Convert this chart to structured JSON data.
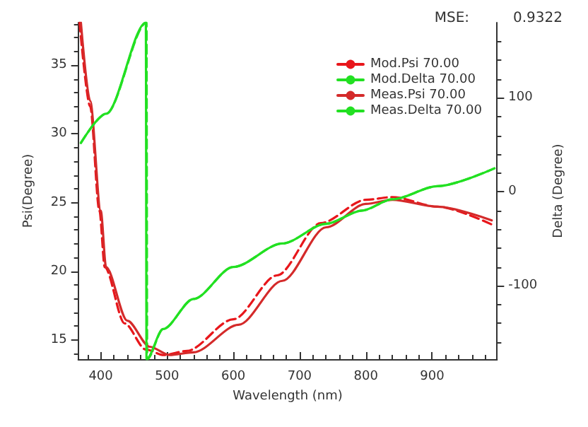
{
  "chart_data": {
    "type": "line",
    "xlabel": "Wavelength (nm)",
    "ylabel": "Psi(Degree)",
    "y2label": "Delta (Degree)",
    "annotations": [
      "MSE:",
      "0.9322"
    ],
    "xlim": [
      366,
      998
    ],
    "xticks": [
      400,
      500,
      600,
      700,
      800,
      900
    ],
    "ylim": [
      13.6,
      38.1
    ],
    "yticks": [
      15,
      20,
      25,
      30,
      35
    ],
    "y2lim": [
      -178,
      180
    ],
    "y2ticks": [
      -100,
      0,
      100
    ],
    "grid": false,
    "legend": "top right",
    "marker": "none",
    "series": [
      {
        "name": "Mod.Psi 70.00",
        "color": "#e8161b",
        "line_style": "dashed",
        "x": [
          368,
          384,
          398,
          406,
          436,
          468,
          495,
          530,
          600,
          666,
          732,
          800,
          840,
          908,
          990
        ],
        "values": [
          38.1,
          32.0,
          24.4,
          20.3,
          16.2,
          14.3,
          13.9,
          14.2,
          16.5,
          19.7,
          23.5,
          25.2,
          25.4,
          24.7,
          23.4
        ]
      },
      {
        "name": "Mod.Delta 70.00",
        "color": "#22e022",
        "line_style": "dashed",
        "x": [
          370,
          408,
          469,
          470,
          494,
          540,
          600,
          674,
          740,
          794,
          840,
          908,
          994
        ],
        "values": [
          52,
          83,
          180,
          -178,
          -146,
          -114,
          -80,
          -55,
          -34,
          -20,
          -8,
          6,
          25
        ],
        "axis": "y2"
      },
      {
        "name": "Meas.Psi 70.00",
        "color": "#d42a2a",
        "line_style": "solid",
        "x": [
          370,
          384,
          400,
          408,
          440,
          474,
          504,
          540,
          608,
          674,
          740,
          800,
          840,
          908,
          990
        ],
        "values": [
          38.1,
          32.4,
          24.4,
          20.3,
          16.4,
          14.5,
          13.9,
          14.1,
          16.1,
          19.3,
          23.2,
          24.9,
          25.2,
          24.7,
          23.7
        ]
      },
      {
        "name": "Meas.Delta 70.00",
        "color": "#22e022",
        "line_style": "solid",
        "x": [
          370,
          408,
          468,
          469,
          494,
          540,
          600,
          674,
          740,
          794,
          840,
          908,
          994
        ],
        "values": [
          52,
          83,
          180,
          -178,
          -146,
          -114,
          -80,
          -55,
          -34,
          -20,
          -8,
          6,
          25
        ],
        "axis": "y2"
      }
    ]
  }
}
